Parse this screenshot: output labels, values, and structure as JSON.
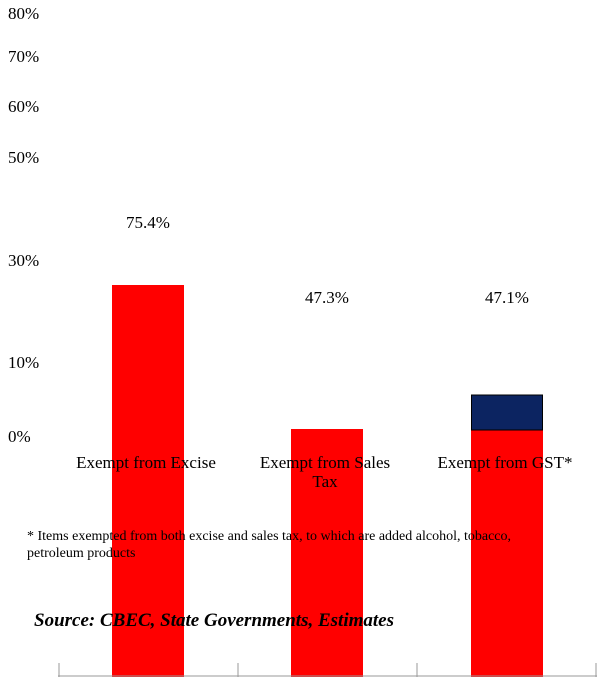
{
  "chart_data": {
    "type": "bar",
    "categories": [
      [
        "Exempt from Excise"
      ],
      [
        "Exempt from Sales",
        "Tax"
      ],
      [
        "Exempt from GST*"
      ]
    ],
    "values": [
      75.4,
      47.3,
      47.1
    ],
    "data_labels": [
      "75.4%",
      "47.3%",
      "47.1%"
    ],
    "stack_top": [
      0,
      0,
      9
    ],
    "y_tick_labels": [
      "80%",
      "70%",
      "60%",
      "50%",
      "30%",
      "10%",
      "0%"
    ],
    "ylim": [
      0,
      80
    ],
    "colors": {
      "bar": "#ff0000",
      "stack_top": "#0c2461",
      "axis": "#999999"
    },
    "grid": false
  },
  "footnote": "* Items exempted from both excise  and sales tax, to which are added alcohol, tobacco, petroleum products",
  "source": "Source: CBEC, State Governments, Estimates"
}
